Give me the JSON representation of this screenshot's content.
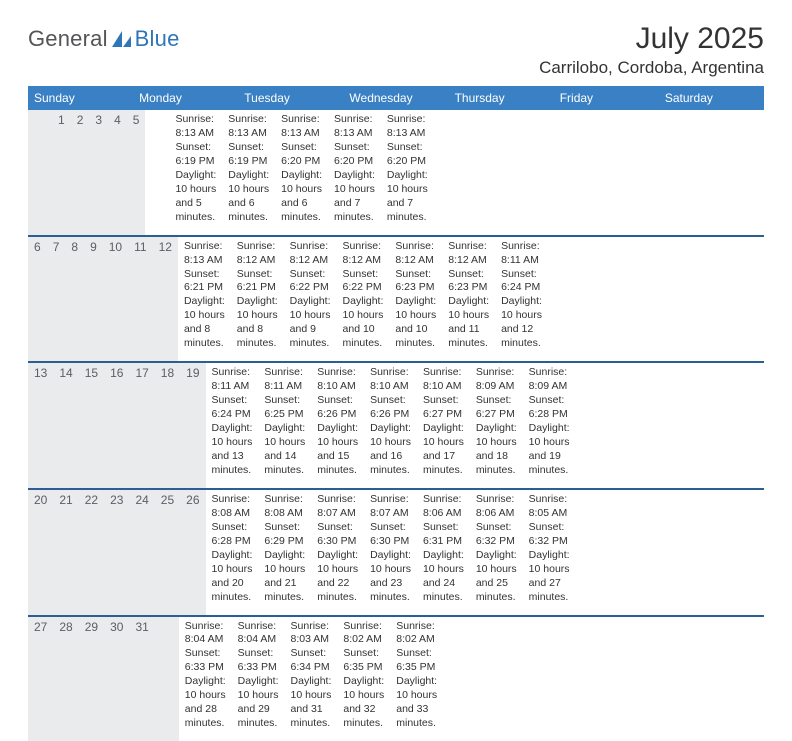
{
  "brand": {
    "word1": "General",
    "word2": "Blue",
    "color_gray": "#555558",
    "color_blue": "#2f76b8"
  },
  "title": "July 2025",
  "location": "Carrilobo, Cordoba, Argentina",
  "header_bg": "#3a80c4",
  "header_fg": "#ffffff",
  "daynum_bg": "#e9ebec",
  "divider_color": "#2a5f94",
  "weekdays": [
    "Sunday",
    "Monday",
    "Tuesday",
    "Wednesday",
    "Thursday",
    "Friday",
    "Saturday"
  ],
  "weeks": [
    [
      null,
      null,
      {
        "n": "1",
        "sr": "8:13 AM",
        "ss": "6:19 PM",
        "dl": "10 hours and 5 minutes."
      },
      {
        "n": "2",
        "sr": "8:13 AM",
        "ss": "6:19 PM",
        "dl": "10 hours and 6 minutes."
      },
      {
        "n": "3",
        "sr": "8:13 AM",
        "ss": "6:20 PM",
        "dl": "10 hours and 6 minutes."
      },
      {
        "n": "4",
        "sr": "8:13 AM",
        "ss": "6:20 PM",
        "dl": "10 hours and 7 minutes."
      },
      {
        "n": "5",
        "sr": "8:13 AM",
        "ss": "6:20 PM",
        "dl": "10 hours and 7 minutes."
      }
    ],
    [
      {
        "n": "6",
        "sr": "8:13 AM",
        "ss": "6:21 PM",
        "dl": "10 hours and 8 minutes."
      },
      {
        "n": "7",
        "sr": "8:12 AM",
        "ss": "6:21 PM",
        "dl": "10 hours and 8 minutes."
      },
      {
        "n": "8",
        "sr": "8:12 AM",
        "ss": "6:22 PM",
        "dl": "10 hours and 9 minutes."
      },
      {
        "n": "9",
        "sr": "8:12 AM",
        "ss": "6:22 PM",
        "dl": "10 hours and 10 minutes."
      },
      {
        "n": "10",
        "sr": "8:12 AM",
        "ss": "6:23 PM",
        "dl": "10 hours and 10 minutes."
      },
      {
        "n": "11",
        "sr": "8:12 AM",
        "ss": "6:23 PM",
        "dl": "10 hours and 11 minutes."
      },
      {
        "n": "12",
        "sr": "8:11 AM",
        "ss": "6:24 PM",
        "dl": "10 hours and 12 minutes."
      }
    ],
    [
      {
        "n": "13",
        "sr": "8:11 AM",
        "ss": "6:24 PM",
        "dl": "10 hours and 13 minutes."
      },
      {
        "n": "14",
        "sr": "8:11 AM",
        "ss": "6:25 PM",
        "dl": "10 hours and 14 minutes."
      },
      {
        "n": "15",
        "sr": "8:10 AM",
        "ss": "6:26 PM",
        "dl": "10 hours and 15 minutes."
      },
      {
        "n": "16",
        "sr": "8:10 AM",
        "ss": "6:26 PM",
        "dl": "10 hours and 16 minutes."
      },
      {
        "n": "17",
        "sr": "8:10 AM",
        "ss": "6:27 PM",
        "dl": "10 hours and 17 minutes."
      },
      {
        "n": "18",
        "sr": "8:09 AM",
        "ss": "6:27 PM",
        "dl": "10 hours and 18 minutes."
      },
      {
        "n": "19",
        "sr": "8:09 AM",
        "ss": "6:28 PM",
        "dl": "10 hours and 19 minutes."
      }
    ],
    [
      {
        "n": "20",
        "sr": "8:08 AM",
        "ss": "6:28 PM",
        "dl": "10 hours and 20 minutes."
      },
      {
        "n": "21",
        "sr": "8:08 AM",
        "ss": "6:29 PM",
        "dl": "10 hours and 21 minutes."
      },
      {
        "n": "22",
        "sr": "8:07 AM",
        "ss": "6:30 PM",
        "dl": "10 hours and 22 minutes."
      },
      {
        "n": "23",
        "sr": "8:07 AM",
        "ss": "6:30 PM",
        "dl": "10 hours and 23 minutes."
      },
      {
        "n": "24",
        "sr": "8:06 AM",
        "ss": "6:31 PM",
        "dl": "10 hours and 24 minutes."
      },
      {
        "n": "25",
        "sr": "8:06 AM",
        "ss": "6:32 PM",
        "dl": "10 hours and 25 minutes."
      },
      {
        "n": "26",
        "sr": "8:05 AM",
        "ss": "6:32 PM",
        "dl": "10 hours and 27 minutes."
      }
    ],
    [
      {
        "n": "27",
        "sr": "8:04 AM",
        "ss": "6:33 PM",
        "dl": "10 hours and 28 minutes."
      },
      {
        "n": "28",
        "sr": "8:04 AM",
        "ss": "6:33 PM",
        "dl": "10 hours and 29 minutes."
      },
      {
        "n": "29",
        "sr": "8:03 AM",
        "ss": "6:34 PM",
        "dl": "10 hours and 31 minutes."
      },
      {
        "n": "30",
        "sr": "8:02 AM",
        "ss": "6:35 PM",
        "dl": "10 hours and 32 minutes."
      },
      {
        "n": "31",
        "sr": "8:02 AM",
        "ss": "6:35 PM",
        "dl": "10 hours and 33 minutes."
      },
      null,
      null
    ]
  ],
  "labels": {
    "sunrise": "Sunrise:",
    "sunset": "Sunset:",
    "daylight": "Daylight:"
  }
}
